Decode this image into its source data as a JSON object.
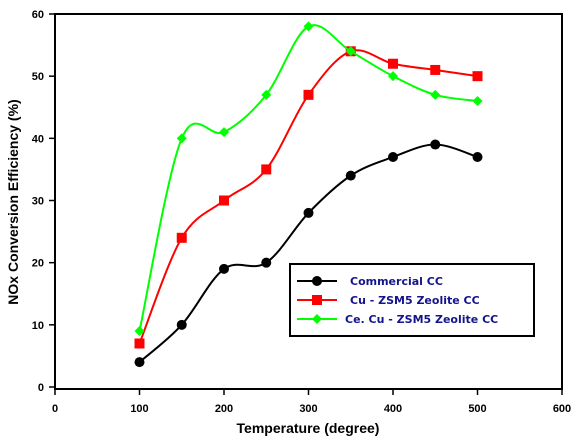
{
  "chart_data": {
    "type": "line",
    "title": "",
    "xlabel": "Temperature (degree)",
    "ylabel": "NOx Conversion Efficiency (%)",
    "xlim": [
      0,
      600
    ],
    "ylim": [
      0,
      60
    ],
    "xticks": [
      "0",
      "100",
      "200",
      "300",
      "400",
      "500",
      "600"
    ],
    "yticks": [
      "0",
      "10",
      "20",
      "30",
      "40",
      "50",
      "60"
    ],
    "grid": false,
    "legend_position": "bottom-right",
    "x": [
      100,
      150,
      200,
      250,
      300,
      350,
      400,
      450,
      500
    ],
    "series": [
      {
        "name": "Commercial CC",
        "color": "#000000",
        "marker": "circle",
        "values": [
          4,
          10,
          19,
          20,
          28,
          34,
          37,
          39,
          37
        ]
      },
      {
        "name": "Cu - ZSM5 Zeolite CC",
        "color": "#ff0000",
        "marker": "square",
        "values": [
          7,
          24,
          30,
          35,
          47,
          54,
          52,
          51,
          50
        ]
      },
      {
        "name": "Ce. Cu - ZSM5 Zeolite CC",
        "color": "#00ff00",
        "marker": "diamond",
        "values": [
          9,
          40,
          41,
          47,
          58,
          54,
          50,
          47,
          46
        ]
      }
    ]
  }
}
